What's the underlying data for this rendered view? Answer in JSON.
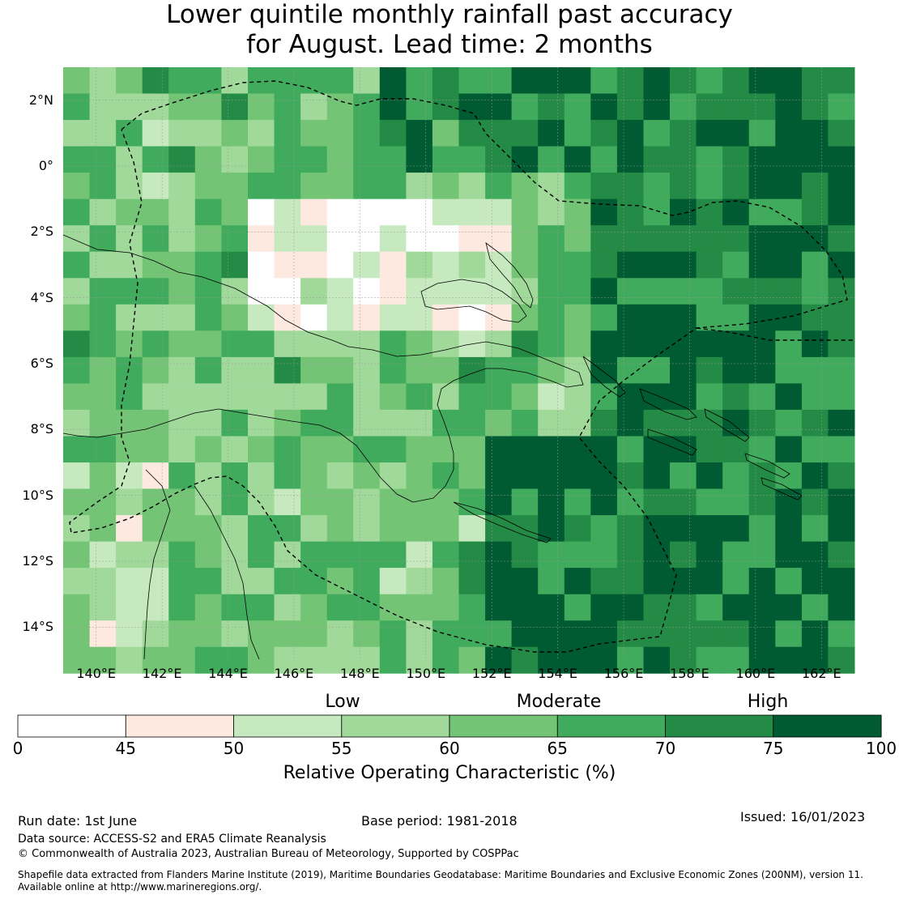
{
  "title": {
    "line1": "Lower quintile monthly rainfall past accuracy",
    "line2": "for August. Lead time: 2 months"
  },
  "map": {
    "lat_ticks": [
      "2°N",
      "0°",
      "2°S",
      "4°S",
      "6°S",
      "8°S",
      "10°S",
      "12°S",
      "14°S"
    ],
    "lon_ticks": [
      "140°E",
      "142°E",
      "144°E",
      "146°E",
      "148°E",
      "150°E",
      "152°E",
      "154°E",
      "156°E",
      "158°E",
      "160°E",
      "162°E"
    ],
    "extent": {
      "lon_min": 139.0,
      "lon_max": 163.0,
      "lat_min": -15.0,
      "lat_max": 3.0
    },
    "grid_resolution_deg": 0.8,
    "gridlines": true
  },
  "colorbar": {
    "categories": [
      "Low",
      "Moderate",
      "High"
    ],
    "ticks": [
      "0",
      "45",
      "50",
      "55",
      "60",
      "65",
      "70",
      "75",
      "100"
    ],
    "colors": [
      "#ffffff",
      "#fde9df",
      "#c7e9c0",
      "#a1d99b",
      "#74c476",
      "#41ab5d",
      "#238b45",
      "#005a32"
    ],
    "title": "Relative Operating Characteristic (%)"
  },
  "footer": {
    "run_date": "Run date: 1st June",
    "base_period": "Base period: 1981-2018",
    "issued": "Issued: 16/01/2023",
    "data_source": "Data source: ACCESS-S2 and ERA5 Climate Reanalysis",
    "copyright": "© Commonwealth of Australia 2023, Australian Bureau of Meteorology, Supported by COSPPac",
    "shapefile_line1": "Shapefile data extracted from Flanders Marine Institute (2019), Maritime Boundaries Geodatabase: Maritime Boundaries and Exclusive Economic Zones (200NM), version 11.",
    "shapefile_line2": "Available online at http://www.marineregions.org/."
  }
}
